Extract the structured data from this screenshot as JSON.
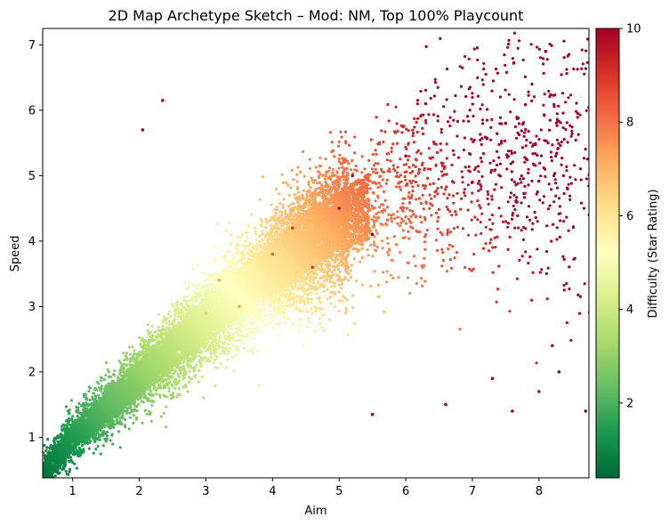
{
  "chart_data": {
    "type": "scatter",
    "title": "2D Map Archetype Sketch – Mod: NM, Top 100% Playcount",
    "xlabel": "Aim",
    "ylabel": "Speed",
    "xlim": [
      0.55,
      8.75
    ],
    "ylim": [
      0.38,
      7.25
    ],
    "xticks": [
      1,
      2,
      3,
      4,
      5,
      6,
      7,
      8
    ],
    "yticks": [
      1,
      2,
      3,
      4,
      5,
      6,
      7
    ],
    "grid": false,
    "legend": "none",
    "colorbar": {
      "label": "Difficulty (Star Rating)",
      "min": 0.4,
      "max": 10,
      "ticks": [
        2,
        4,
        6,
        8,
        10
      ],
      "colormap": "RdYlGn_r",
      "colors": [
        "#006837",
        "#1a9850",
        "#66bd63",
        "#a6d96a",
        "#d9ef8b",
        "#ffffbf",
        "#fee08b",
        "#fdae61",
        "#f46d43",
        "#d73027",
        "#a50026"
      ]
    },
    "series": [
      {
        "description": "dense main band of maps, color by difficulty",
        "trend": [
          [
            0.6,
            0.5
          ],
          [
            1.0,
            1.0
          ],
          [
            2.0,
            1.9
          ],
          [
            3.0,
            2.8
          ],
          [
            4.0,
            3.6
          ],
          [
            5.0,
            4.3
          ],
          [
            6.0,
            4.8
          ],
          [
            7.0,
            5.1
          ],
          [
            8.0,
            5.3
          ]
        ],
        "points": [
          [
            0.7,
            0.6,
            1.2
          ],
          [
            1.0,
            0.9,
            1.8
          ],
          [
            1.2,
            1.3,
            2.3
          ],
          [
            1.5,
            1.2,
            2.6
          ],
          [
            1.8,
            1.9,
            3.4
          ],
          [
            2.0,
            2.2,
            4.2
          ],
          [
            2.3,
            2.5,
            5.0
          ],
          [
            2.6,
            2.3,
            5.4
          ],
          [
            3.0,
            2.9,
            6.6
          ],
          [
            3.2,
            3.4,
            7.2
          ],
          [
            3.5,
            3.0,
            7.3
          ],
          [
            4.0,
            3.8,
            8.3
          ],
          [
            4.3,
            4.2,
            8.9
          ],
          [
            4.6,
            3.6,
            8.8
          ],
          [
            5.0,
            4.5,
            9.8
          ],
          [
            5.2,
            5.0,
            10.0
          ],
          [
            5.5,
            4.1,
            10.0
          ],
          [
            6.0,
            5.3,
            10.0
          ],
          [
            6.3,
            6.1,
            10.0
          ],
          [
            7.0,
            4.9,
            10.0
          ],
          [
            7.5,
            5.8,
            10.0
          ],
          [
            8.1,
            6.9,
            10.0
          ]
        ]
      },
      {
        "description": "sparse outliers",
        "points": [
          [
            2.05,
            5.7,
            10.0
          ],
          [
            2.35,
            6.15,
            10.0
          ],
          [
            6.6,
            1.5,
            10.0
          ],
          [
            7.3,
            1.9,
            10.0
          ],
          [
            7.6,
            1.4,
            10.0
          ],
          [
            8.0,
            1.7,
            10.0
          ],
          [
            8.3,
            2.0,
            10.0
          ],
          [
            8.7,
            1.4,
            10.0
          ],
          [
            8.2,
            2.4,
            10.0
          ],
          [
            5.5,
            1.35,
            10.0
          ]
        ]
      }
    ]
  }
}
